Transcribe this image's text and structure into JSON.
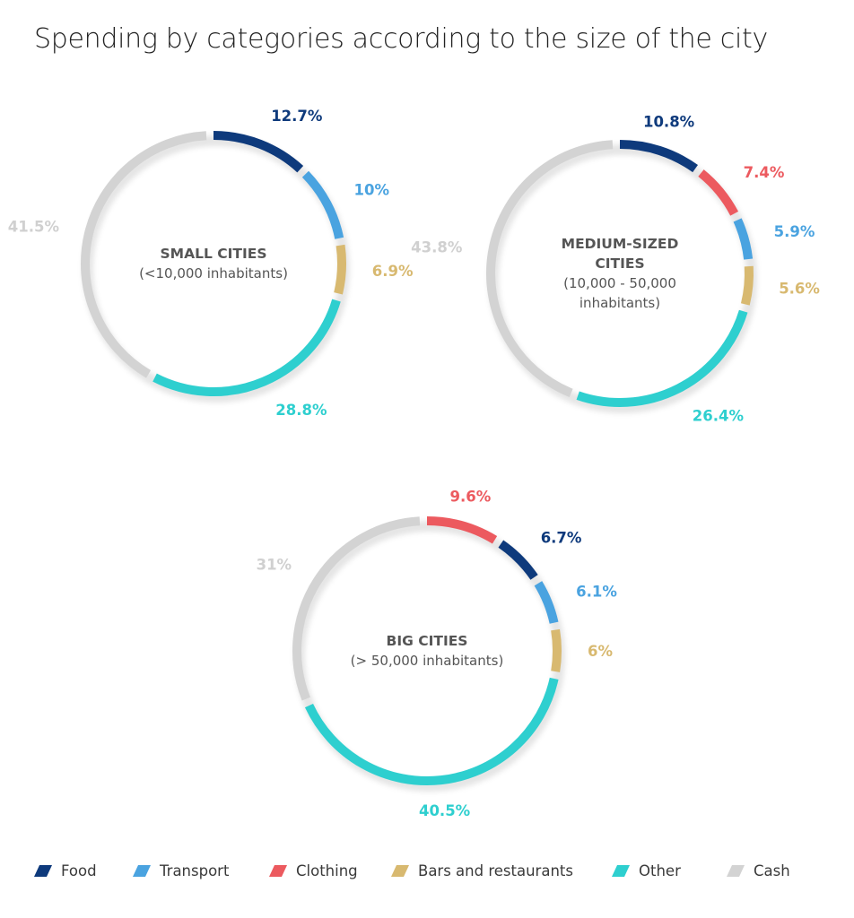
{
  "title": "Spending by categories according to the size of the city",
  "colors": {
    "Food": "#0e3a7c",
    "Transport": "#4aa3e0",
    "Clothing": "#ec5a5f",
    "Bars and restaurants": "#d8b970",
    "Other": "#2ecfcf",
    "Cash": "#d3d3d3"
  },
  "legend": [
    {
      "name": "Food",
      "color": "#0e3a7c"
    },
    {
      "name": "Transport",
      "color": "#4aa3e0"
    },
    {
      "name": "Clothing",
      "color": "#ec5a5f"
    },
    {
      "name": "Bars and restaurants",
      "color": "#d8b970"
    },
    {
      "name": "Other",
      "color": "#2ecfcf"
    },
    {
      "name": "Cash",
      "color": "#d3d3d3"
    }
  ],
  "chart_data": [
    {
      "type": "pie",
      "center_title": [
        "SMALL CITIES"
      ],
      "center_subtitle": [
        "(<10,000 inhabitants)"
      ],
      "slices": [
        {
          "category": "Food",
          "value": 12.7,
          "label": "12.7%"
        },
        {
          "category": "Transport",
          "value": 10,
          "label": "10%"
        },
        {
          "category": "Bars and restaurants",
          "value": 6.9,
          "label": "6.9%"
        },
        {
          "category": "Other",
          "value": 28.8,
          "label": "28.8%"
        },
        {
          "category": "Cash",
          "value": 41.5,
          "label": "41.5%"
        }
      ]
    },
    {
      "type": "pie",
      "center_title": [
        "MEDIUM-SIZED",
        "CITIES"
      ],
      "center_subtitle": [
        "(10,000 - 50,000",
        "inhabitants)"
      ],
      "slices": [
        {
          "category": "Food",
          "value": 10.8,
          "label": "10.8%"
        },
        {
          "category": "Clothing",
          "value": 7.4,
          "label": "7.4%"
        },
        {
          "category": "Transport",
          "value": 5.9,
          "label": "5.9%"
        },
        {
          "category": "Bars and restaurants",
          "value": 5.6,
          "label": "5.6%"
        },
        {
          "category": "Other",
          "value": 26.4,
          "label": "26.4%"
        },
        {
          "category": "Cash",
          "value": 43.8,
          "label": "43.8%"
        }
      ]
    },
    {
      "type": "pie",
      "center_title": [
        "BIG CITIES"
      ],
      "center_subtitle": [
        "(> 50,000 inhabitants)"
      ],
      "slices": [
        {
          "category": "Clothing",
          "value": 9.6,
          "label": "9.6%"
        },
        {
          "category": "Food",
          "value": 6.7,
          "label": "6.7%"
        },
        {
          "category": "Transport",
          "value": 6.1,
          "label": "6.1%"
        },
        {
          "category": "Bars and restaurants",
          "value": 6,
          "label": "6%"
        },
        {
          "category": "Other",
          "value": 40.5,
          "label": "40.5%"
        },
        {
          "category": "Cash",
          "value": 31,
          "label": "31%"
        }
      ]
    }
  ]
}
